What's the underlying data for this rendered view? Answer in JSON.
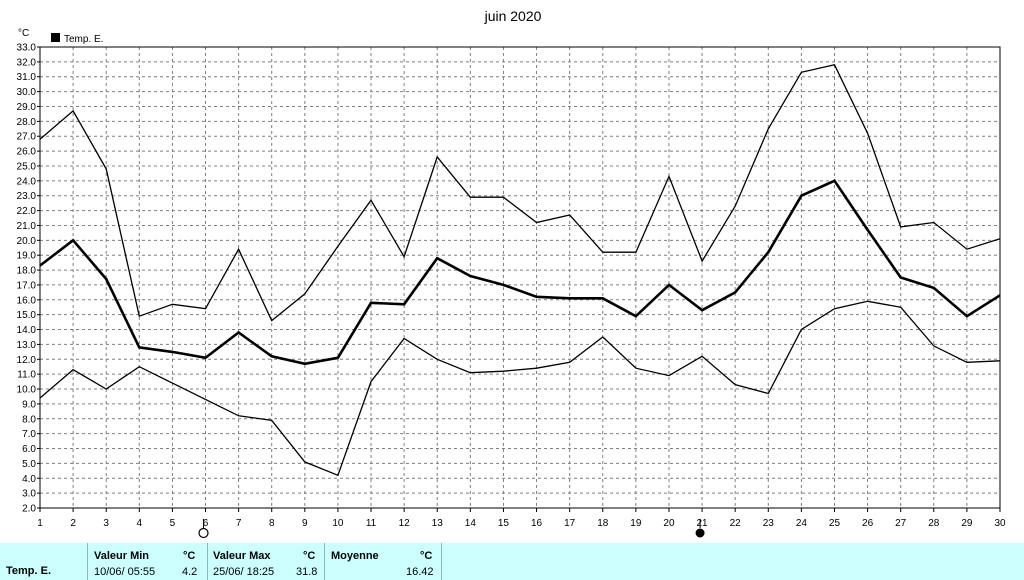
{
  "chart_data": {
    "type": "line",
    "title": "juin 2020",
    "ylabel": "°C",
    "ylim": [
      2.0,
      33.0
    ],
    "yticks": [
      "2.0",
      "3.0",
      "4.0",
      "5.0",
      "6.0",
      "7.0",
      "8.0",
      "9.0",
      "10.0",
      "11.0",
      "12.0",
      "13.0",
      "14.0",
      "15.0",
      "16.0",
      "17.0",
      "18.0",
      "19.0",
      "20.0",
      "21.0",
      "22.0",
      "23.0",
      "24.0",
      "25.0",
      "26.0",
      "27.0",
      "28.0",
      "29.0",
      "30.0",
      "31.0",
      "32.0",
      "33.0"
    ],
    "x": [
      1,
      2,
      3,
      4,
      5,
      6,
      7,
      8,
      9,
      10,
      11,
      12,
      13,
      14,
      15,
      16,
      17,
      18,
      19,
      20,
      21,
      22,
      23,
      24,
      25,
      26,
      27,
      28,
      29,
      30
    ],
    "xticks": [
      "1",
      "2",
      "3",
      "4",
      "5",
      "6",
      "7",
      "8",
      "9",
      "10",
      "11",
      "12",
      "13",
      "14",
      "15",
      "16",
      "17",
      "18",
      "19",
      "20",
      "21",
      "22",
      "23",
      "24",
      "25",
      "26",
      "27",
      "28",
      "29",
      "30"
    ],
    "legend": {
      "label": "Temp. E.",
      "position": "top-left"
    },
    "grid": true,
    "series": [
      {
        "role": "max",
        "width": 1.3,
        "values": [
          26.8,
          28.7,
          24.8,
          14.9,
          15.7,
          15.4,
          19.4,
          14.6,
          16.4,
          19.6,
          22.7,
          18.9,
          25.6,
          22.9,
          22.9,
          21.2,
          21.7,
          19.2,
          19.2,
          24.3,
          18.6,
          22.3,
          27.5,
          31.3,
          31.8,
          27.2,
          20.9,
          21.2,
          19.4,
          20.1
        ]
      },
      {
        "role": "mean",
        "width": 2.6,
        "values": [
          18.3,
          20.0,
          17.4,
          12.8,
          12.5,
          12.1,
          13.8,
          12.2,
          11.7,
          12.1,
          15.8,
          15.7,
          18.8,
          17.6,
          17.0,
          16.2,
          16.1,
          16.1,
          14.9,
          17.0,
          15.3,
          16.5,
          19.2,
          23.0,
          24.0,
          20.7,
          17.5,
          16.8,
          14.9,
          16.3
        ]
      },
      {
        "role": "min",
        "width": 1.3,
        "values": [
          9.4,
          11.3,
          10.0,
          11.5,
          10.4,
          9.3,
          8.2,
          7.9,
          5.1,
          4.2,
          10.5,
          13.4,
          12.0,
          11.1,
          11.2,
          11.4,
          11.8,
          13.5,
          11.4,
          10.9,
          12.2,
          10.3,
          9.7,
          14.0,
          15.4,
          15.9,
          15.5,
          12.9,
          11.8,
          11.9
        ]
      }
    ],
    "moon_phases": [
      {
        "day": 6,
        "phase": "full-moon"
      },
      {
        "day": 21,
        "phase": "new-moon"
      }
    ]
  },
  "stats": {
    "row_label": "Temp. E.",
    "min_label": "Valeur Min",
    "unit": "°C",
    "min_date": "10/06/  05:55",
    "min_value": "4.2",
    "max_label": "Valeur Max",
    "max_date": "25/06/  18:25",
    "max_value": "31.8",
    "avg_label": "Moyenne",
    "avg_value": "16.42"
  },
  "colors": {
    "line": "#000000",
    "grid": "#7f7f7f",
    "stats_bg": "#ccffff"
  }
}
